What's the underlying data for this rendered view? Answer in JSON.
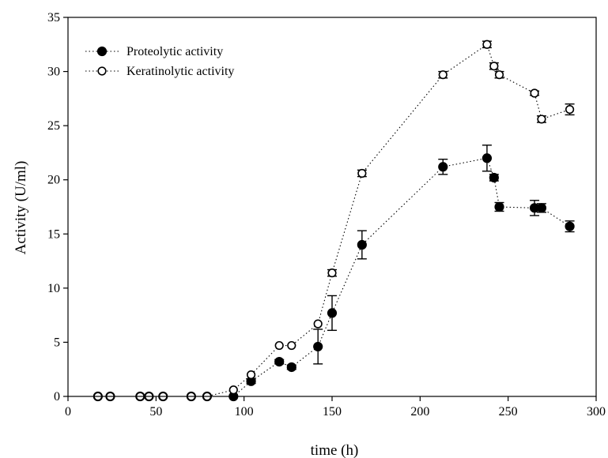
{
  "chart_data": {
    "type": "scatter",
    "title": "",
    "xlabel": "time (h)",
    "ylabel": "Activity (U/ml)",
    "xlim": [
      0,
      300
    ],
    "ylim": [
      0,
      35
    ],
    "xticks": [
      0,
      50,
      100,
      150,
      200,
      250,
      300
    ],
    "yticks": [
      0,
      5,
      10,
      15,
      20,
      25,
      30,
      35
    ],
    "grid": false,
    "legend_position": "top-left",
    "series": [
      {
        "name": "Proteolytic activity",
        "marker": "filled-circle",
        "line": "dotted",
        "color": "#000000",
        "points": [
          {
            "x": 17,
            "y": 0,
            "err": 0
          },
          {
            "x": 24,
            "y": 0,
            "err": 0
          },
          {
            "x": 41,
            "y": 0,
            "err": 0
          },
          {
            "x": 46,
            "y": 0,
            "err": 0
          },
          {
            "x": 54,
            "y": 0,
            "err": 0
          },
          {
            "x": 70,
            "y": 0,
            "err": 0
          },
          {
            "x": 79,
            "y": 0,
            "err": 0
          },
          {
            "x": 94,
            "y": 0,
            "err": 0
          },
          {
            "x": 104,
            "y": 1.4,
            "err": 0.2
          },
          {
            "x": 120,
            "y": 3.2,
            "err": 0.2
          },
          {
            "x": 127,
            "y": 2.7,
            "err": 0.2
          },
          {
            "x": 142,
            "y": 4.6,
            "err": 1.6
          },
          {
            "x": 150,
            "y": 7.7,
            "err": 1.6
          },
          {
            "x": 167,
            "y": 14.0,
            "err": 1.3
          },
          {
            "x": 213,
            "y": 21.2,
            "err": 0.7
          },
          {
            "x": 238,
            "y": 22.0,
            "err": 1.2
          },
          {
            "x": 242,
            "y": 20.2,
            "err": 0.3
          },
          {
            "x": 245,
            "y": 17.5,
            "err": 0.4
          },
          {
            "x": 265,
            "y": 17.4,
            "err": 0.7
          },
          {
            "x": 269,
            "y": 17.4,
            "err": 0.4
          },
          {
            "x": 285,
            "y": 15.7,
            "err": 0.5
          }
        ]
      },
      {
        "name": "Keratinolytic activity",
        "marker": "open-circle",
        "line": "dotted",
        "color": "#000000",
        "points": [
          {
            "x": 17,
            "y": 0,
            "err": 0
          },
          {
            "x": 24,
            "y": 0,
            "err": 0
          },
          {
            "x": 41,
            "y": 0,
            "err": 0
          },
          {
            "x": 46,
            "y": 0,
            "err": 0
          },
          {
            "x": 54,
            "y": 0,
            "err": 0
          },
          {
            "x": 70,
            "y": 0,
            "err": 0
          },
          {
            "x": 79,
            "y": 0,
            "err": 0
          },
          {
            "x": 94,
            "y": 0.6,
            "err": 0
          },
          {
            "x": 104,
            "y": 2.0,
            "err": 0
          },
          {
            "x": 120,
            "y": 4.7,
            "err": 0
          },
          {
            "x": 127,
            "y": 4.7,
            "err": 0
          },
          {
            "x": 142,
            "y": 6.7,
            "err": 0
          },
          {
            "x": 150,
            "y": 11.4,
            "err": 0.3
          },
          {
            "x": 167,
            "y": 20.6,
            "err": 0.3
          },
          {
            "x": 213,
            "y": 29.7,
            "err": 0.3
          },
          {
            "x": 238,
            "y": 32.5,
            "err": 0.3
          },
          {
            "x": 242,
            "y": 30.5,
            "err": 0.3
          },
          {
            "x": 245,
            "y": 29.7,
            "err": 0.3
          },
          {
            "x": 265,
            "y": 28.0,
            "err": 0.2
          },
          {
            "x": 269,
            "y": 25.6,
            "err": 0.3
          },
          {
            "x": 285,
            "y": 26.5,
            "err": 0.5
          }
        ]
      }
    ]
  }
}
